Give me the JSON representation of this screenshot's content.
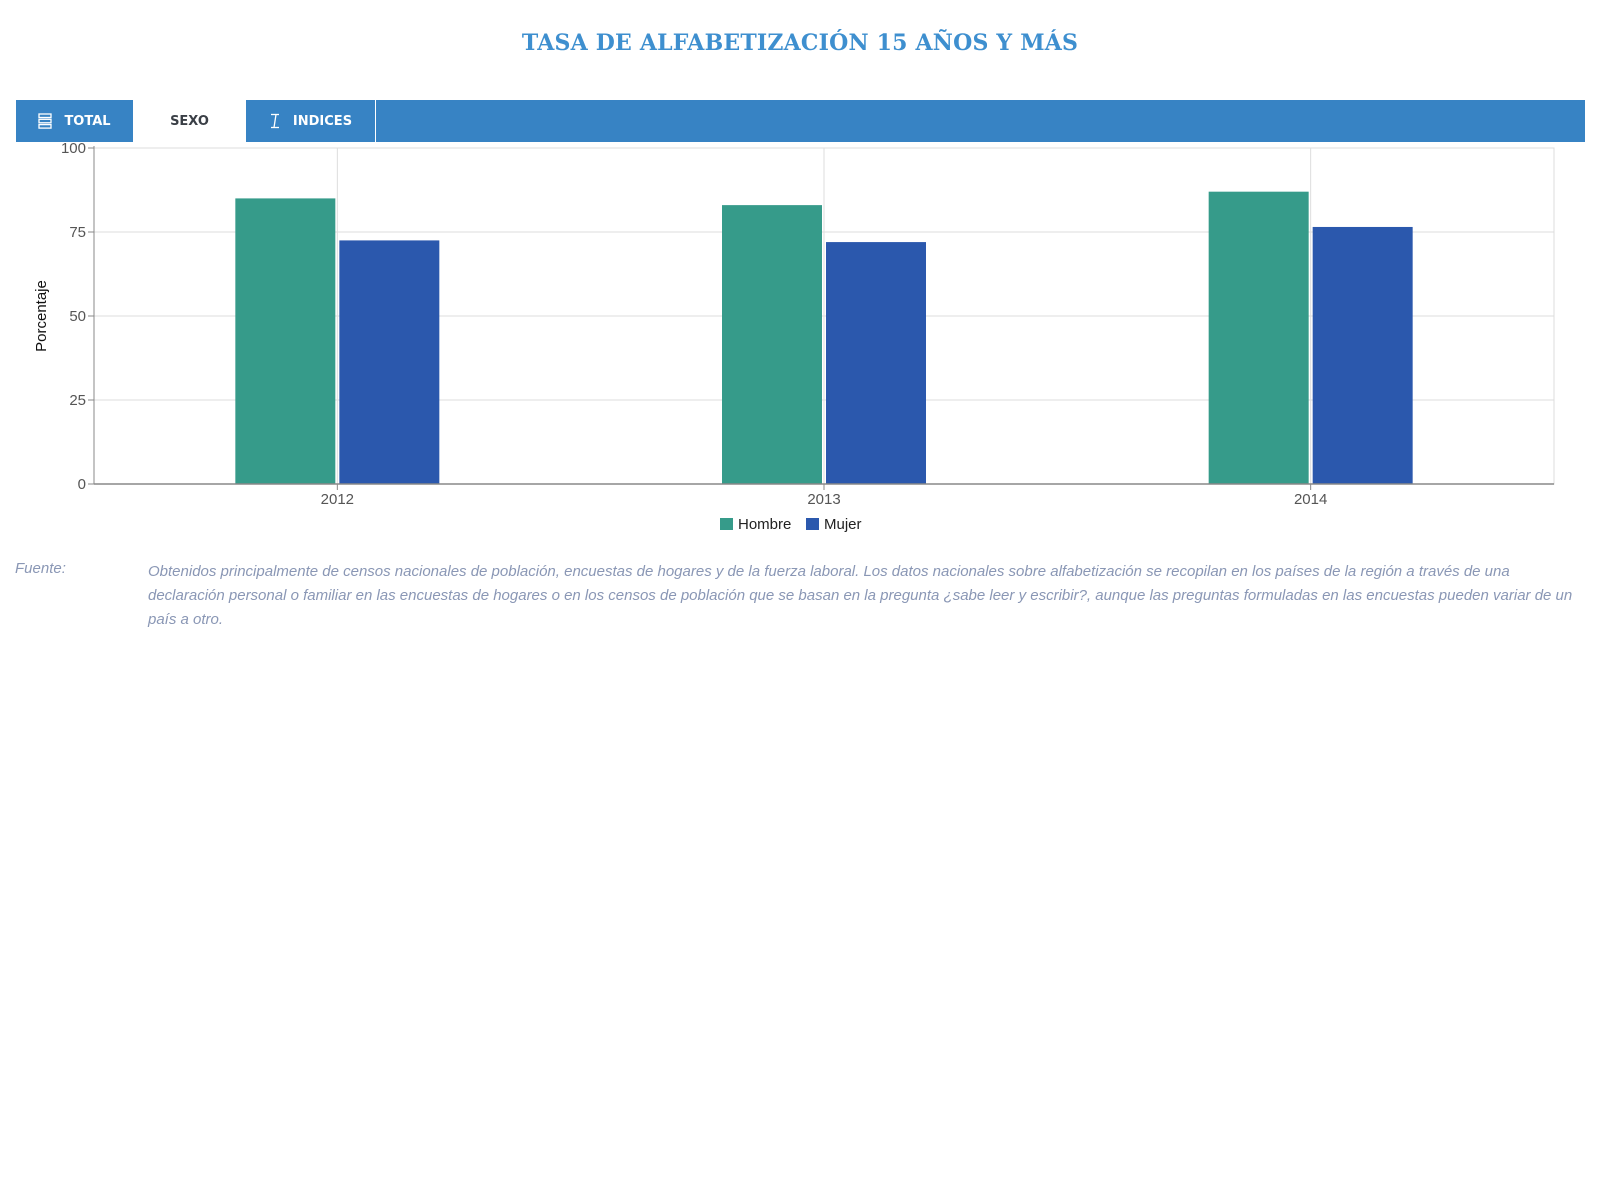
{
  "page": {
    "title": "TASA DE ALFABETIZACIÓN 15 AÑOS Y MÁS"
  },
  "tabs": [
    {
      "label": "TOTAL",
      "icon": "list-icon",
      "active": false
    },
    {
      "label": "SEXO",
      "icon": "",
      "active": true
    },
    {
      "label": "INDICES",
      "icon": "text-cursor-icon",
      "active": false
    }
  ],
  "colors": {
    "accent": "#3783c4",
    "title": "#3e8fcf",
    "hombre": "#369b8a",
    "mujer": "#2b58ad"
  },
  "chart_data": {
    "type": "bar",
    "title": "",
    "xlabel": "",
    "ylabel": "Porcentaje",
    "categories": [
      "2012",
      "2013",
      "2014"
    ],
    "series": [
      {
        "name": "Hombre",
        "values": [
          85,
          83,
          87
        ],
        "color": "#369b8a"
      },
      {
        "name": "Mujer",
        "values": [
          72.5,
          72,
          76.5
        ],
        "color": "#2b58ad"
      }
    ],
    "ylim": [
      0,
      100
    ],
    "yticks": [
      0,
      25,
      50,
      75,
      100
    ],
    "grid": true,
    "legend": "bottom-center"
  },
  "source": {
    "label": "Fuente:",
    "text": "Obtenidos principalmente de censos nacionales de población, encuestas de hogares y de la fuerza laboral. Los datos nacionales sobre alfabetización se recopilan en los países de la región a través de una declaración personal o familiar en las encuestas de hogares o en los censos de población que se basan en la pregunta ¿sabe leer y escribir?, aunque las preguntas formuladas en las encuestas pueden variar de un país a otro."
  }
}
